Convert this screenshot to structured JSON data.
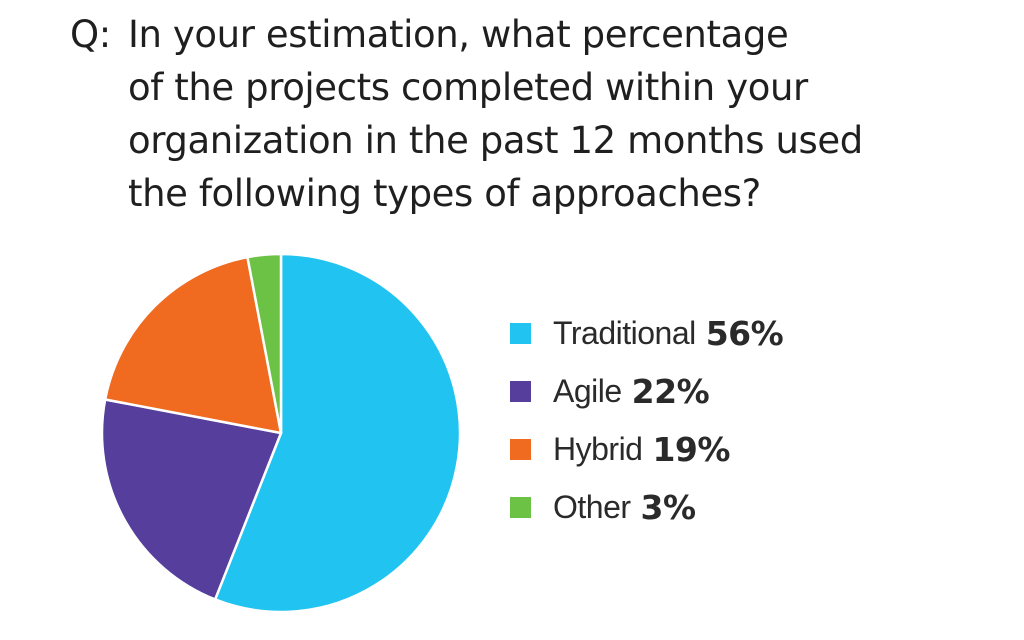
{
  "question": {
    "prefix": "Q:",
    "lines": [
      "In your estimation, what percentage",
      "of the projects completed within your",
      "organization in the past 12 months used",
      "the following types of approaches?"
    ]
  },
  "chart_data": {
    "type": "pie",
    "unit": "%",
    "categories": [
      "Traditional",
      "Agile",
      "Hybrid",
      "Other"
    ],
    "values": [
      56,
      22,
      19,
      3
    ],
    "colors": [
      "#21C3F1",
      "#553E9C",
      "#F06A20",
      "#6CC244"
    ],
    "legend_position": "right",
    "legend": [
      {
        "label": "Traditional",
        "value": "56%"
      },
      {
        "label": "Agile",
        "value": "22%"
      },
      {
        "label": "Hybrid",
        "value": "19%"
      },
      {
        "label": "Other",
        "value": "3%"
      }
    ]
  }
}
